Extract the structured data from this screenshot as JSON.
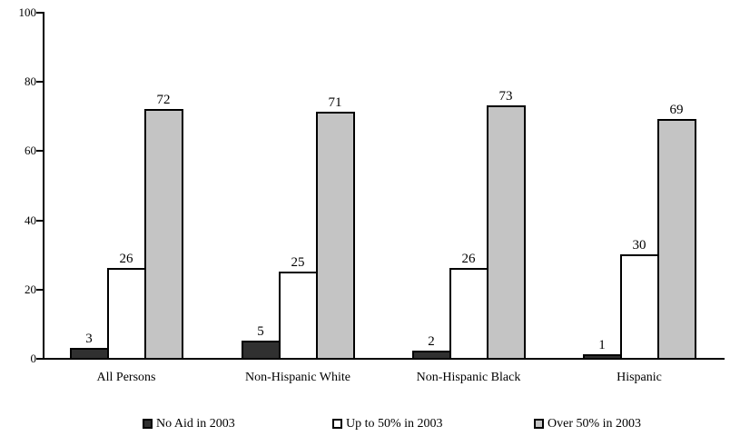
{
  "chart_data": {
    "type": "bar",
    "title": "",
    "xlabel": "",
    "ylabel": "",
    "categories": [
      "All Persons",
      "Non-Hispanic White",
      "Non-Hispanic Black",
      "Hispanic"
    ],
    "series": [
      {
        "name": "No Aid in 2003",
        "color": "#303030",
        "values": [
          3,
          5,
          2,
          1
        ]
      },
      {
        "name": "Up to 50% in 2003",
        "color": "#ffffff",
        "values": [
          26,
          25,
          26,
          30
        ]
      },
      {
        "name": "Over 50% in 2003",
        "color": "#c4c4c4",
        "values": [
          72,
          71,
          73,
          69
        ]
      }
    ],
    "y_ticks": [
      0,
      20,
      40,
      60,
      80,
      100
    ],
    "ylim": [
      0,
      100
    ],
    "bar_value_labels_shown": true,
    "grid": false,
    "legend_position": "bottom",
    "axis_color": "#000000",
    "bar_border_color": "#000000",
    "background_color": "#ffffff"
  }
}
